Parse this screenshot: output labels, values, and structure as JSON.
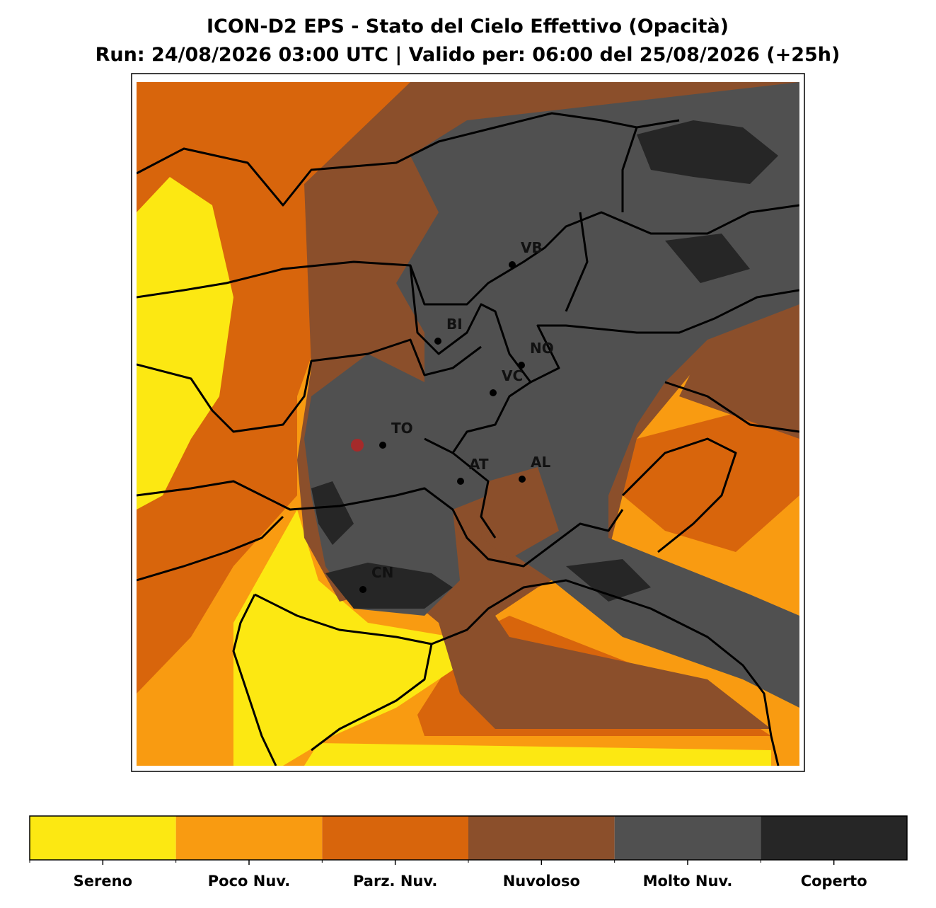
{
  "title": "ICON-D2 EPS - Stato del Cielo Effettivo (Opacità)",
  "subtitle": "Run: 24/08/2026 03:00 UTC | Valido per: 06:00 del 25/08/2026 (+25h)",
  "cities": [
    {
      "label": "VB"
    },
    {
      "label": "BI"
    },
    {
      "label": "NO"
    },
    {
      "label": "VC"
    },
    {
      "label": "TO"
    },
    {
      "label": "AT"
    },
    {
      "label": "AL"
    },
    {
      "label": "CN"
    }
  ],
  "legend": {
    "categories": [
      {
        "label": "Sereno",
        "color": "#fce812"
      },
      {
        "label": "Poco Nuv.",
        "color": "#f99b11"
      },
      {
        "label": "Parz. Nuv.",
        "color": "#d8650c"
      },
      {
        "label": "Nuvoloso",
        "color": "#8b4f2b"
      },
      {
        "label": "Molto Nuv.",
        "color": "#505050"
      },
      {
        "label": "Coperto",
        "color": "#262626"
      }
    ]
  }
}
